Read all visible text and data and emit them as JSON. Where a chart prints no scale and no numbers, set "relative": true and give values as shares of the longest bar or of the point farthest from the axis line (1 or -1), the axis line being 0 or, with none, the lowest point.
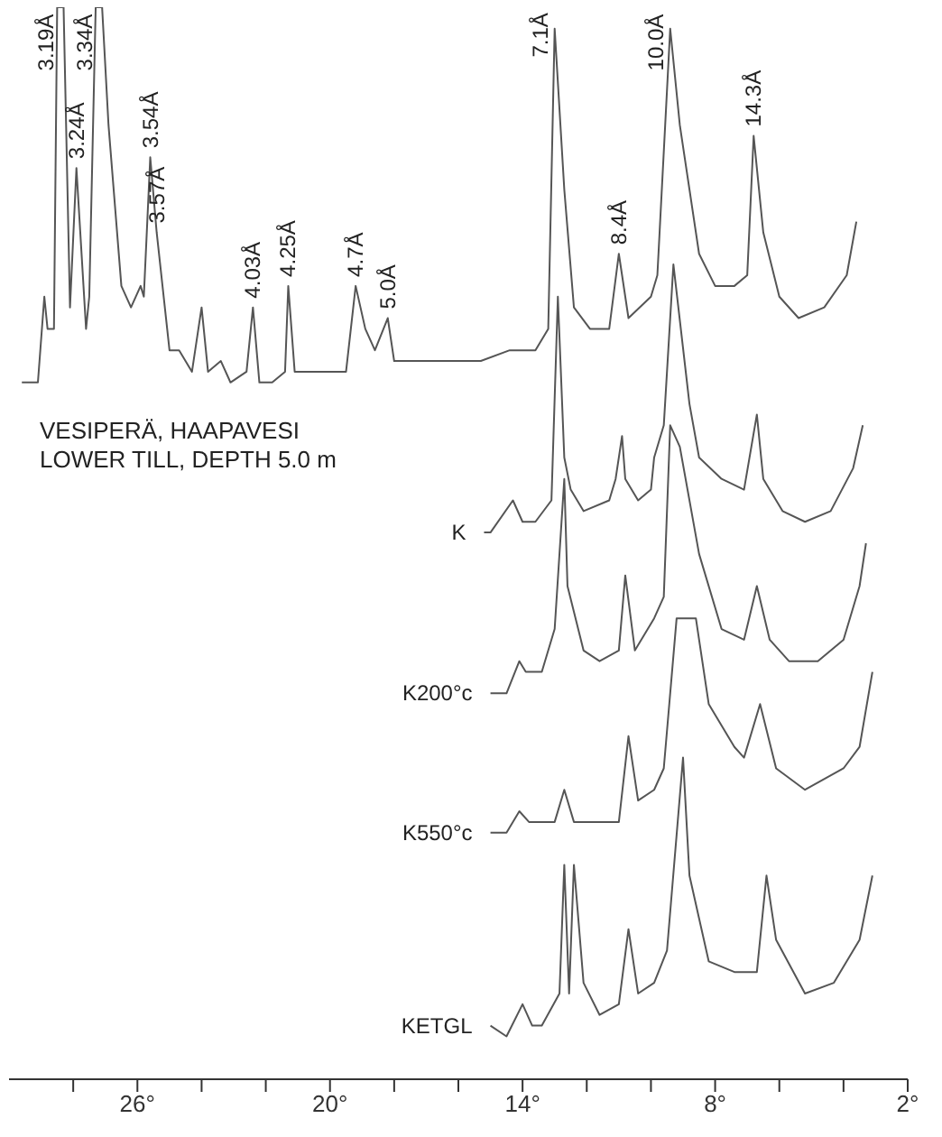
{
  "chart_data": {
    "type": "line",
    "relative": true,
    "xlim": [
      30,
      2
    ],
    "xticks": [
      {
        "value": 28,
        "label": null
      },
      {
        "value": 26,
        "label": "26°"
      },
      {
        "value": 24,
        "label": null
      },
      {
        "value": 22,
        "label": null
      },
      {
        "value": 20,
        "label": "20°"
      },
      {
        "value": 18,
        "label": null
      },
      {
        "value": 16,
        "label": null
      },
      {
        "value": 14,
        "label": "14°"
      },
      {
        "value": 12,
        "label": null
      },
      {
        "value": 10,
        "label": null
      },
      {
        "value": 8,
        "label": "8°"
      },
      {
        "value": 6,
        "label": null
      },
      {
        "value": 4,
        "label": null
      },
      {
        "value": 2,
        "label": "2°"
      }
    ],
    "annotations": [
      "VESIPERÄ, HAAPAVESI",
      "LOWER TILL, DEPTH 5.0 m",
      {
        "text": "3.19Å",
        "x": 28.4,
        "y": 1
      },
      {
        "text": "3.24Å",
        "x": 27.9,
        "y": 0.85
      },
      {
        "text": "3.34Å",
        "x": 27.2,
        "y": 1
      },
      {
        "text": "3.54Å",
        "x": 25.6,
        "y": 0.86
      },
      {
        "text": "3.57Å",
        "x": 25.4,
        "y": 0.79
      },
      {
        "text": "4.03Å",
        "x": 22.4,
        "y": 0.72
      },
      {
        "text": "4.25Å",
        "x": 21.3,
        "y": 0.74
      },
      {
        "text": "4.7Å",
        "x": 19.2,
        "y": 0.74
      },
      {
        "text": "5.0Å",
        "x": 18.2,
        "y": 0.71
      },
      {
        "text": "7.1Å",
        "x": 13.0,
        "y": 0.98
      },
      {
        "text": "8.4Å",
        "x": 11.0,
        "y": 0.77
      },
      {
        "text": "10.0Å",
        "x": 9.4,
        "y": 0.98
      },
      {
        "text": "14.3Å",
        "x": 6.8,
        "y": 0.88
      }
    ],
    "series": [
      {
        "color": "#555555",
        "x": [
          29.6,
          29.4,
          29.1,
          28.9,
          28.8,
          28.6,
          28.5,
          28.3,
          28.1,
          27.9,
          27.6,
          27.5,
          27.3,
          27.1,
          26.9,
          26.5,
          26.2,
          25.9,
          25.8,
          25.6,
          25.4,
          25.0,
          24.7,
          24.3,
          24.0,
          23.8,
          23.4,
          23.1,
          22.6,
          22.4,
          22.2,
          21.8,
          21.4,
          21.3,
          21.1,
          20.6,
          20.0,
          19.5,
          19.2,
          18.9,
          18.6,
          18.2,
          18.0,
          17.2,
          16.1,
          15.3,
          14.4,
          13.6,
          13.2,
          13.0,
          12.7,
          12.4,
          11.9,
          11.3,
          11.0,
          10.7,
          10.0,
          9.8,
          9.4,
          9.1,
          8.5,
          8.0,
          7.4,
          7.0,
          6.8,
          6.5,
          6.0,
          5.4,
          4.6,
          3.9,
          3.6
        ],
        "values": [
          0.65,
          0.65,
          0.65,
          0.73,
          0.7,
          0.7,
          1,
          1,
          0.72,
          0.85,
          0.7,
          0.73,
          1,
          1,
          0.89,
          0.74,
          0.72,
          0.74,
          0.73,
          0.86,
          0.79,
          0.68,
          0.68,
          0.66,
          0.72,
          0.66,
          0.67,
          0.65,
          0.66,
          0.72,
          0.65,
          0.65,
          0.66,
          0.74,
          0.66,
          0.66,
          0.66,
          0.66,
          0.74,
          0.7,
          0.68,
          0.71,
          0.67,
          0.67,
          0.67,
          0.67,
          0.68,
          0.68,
          0.7,
          0.98,
          0.83,
          0.72,
          0.7,
          0.7,
          0.77,
          0.71,
          0.73,
          0.75,
          0.98,
          0.89,
          0.77,
          0.74,
          0.74,
          0.75,
          0.88,
          0.79,
          0.73,
          0.71,
          0.72,
          0.75,
          0.8
        ]
      },
      {
        "name": "K",
        "color": "#555555",
        "x": [
          15.2,
          15.0,
          14.3,
          14.0,
          13.6,
          13.1,
          12.9,
          12.7,
          12.5,
          12.1,
          11.3,
          11.1,
          10.9,
          10.8,
          10.4,
          10.0,
          9.9,
          9.6,
          9.3,
          8.8,
          8.5,
          7.8,
          7.1,
          6.7,
          6.5,
          5.9,
          5.2,
          4.4,
          3.7,
          3.4
        ],
        "values": [
          0.51,
          0.51,
          0.54,
          0.52,
          0.52,
          0.54,
          0.73,
          0.58,
          0.55,
          0.53,
          0.54,
          0.56,
          0.6,
          0.56,
          0.54,
          0.55,
          0.58,
          0.61,
          0.76,
          0.63,
          0.58,
          0.56,
          0.55,
          0.62,
          0.56,
          0.53,
          0.52,
          0.53,
          0.57,
          0.61
        ]
      },
      {
        "name": "K200°c",
        "color": "#555555",
        "x": [
          15.0,
          14.5,
          14.1,
          13.9,
          13.4,
          13.0,
          12.7,
          12.6,
          12.1,
          11.6,
          11.0,
          10.8,
          10.5,
          9.9,
          9.6,
          9.4,
          9.1,
          8.5,
          7.8,
          7.1,
          6.7,
          6.3,
          5.7,
          4.8,
          4.0,
          3.5,
          3.3
        ],
        "values": [
          0.36,
          0.36,
          0.39,
          0.38,
          0.38,
          0.42,
          0.56,
          0.46,
          0.4,
          0.39,
          0.4,
          0.47,
          0.4,
          0.43,
          0.45,
          0.61,
          0.59,
          0.49,
          0.42,
          0.41,
          0.46,
          0.41,
          0.39,
          0.39,
          0.41,
          0.46,
          0.5
        ]
      },
      {
        "name": "K550°c",
        "color": "#555555",
        "x": [
          15.0,
          14.5,
          14.1,
          13.8,
          13.0,
          12.7,
          12.4,
          11.6,
          11.0,
          10.7,
          10.4,
          9.9,
          9.6,
          9.2,
          8.6,
          8.2,
          7.4,
          7.1,
          6.6,
          6.1,
          5.2,
          4.0,
          3.5,
          3.1
        ],
        "values": [
          0.23,
          0.23,
          0.25,
          0.24,
          0.24,
          0.27,
          0.24,
          0.24,
          0.24,
          0.32,
          0.26,
          0.27,
          0.29,
          0.43,
          0.43,
          0.35,
          0.31,
          0.3,
          0.35,
          0.29,
          0.27,
          0.29,
          0.31,
          0.38
        ]
      },
      {
        "name": "KETGL",
        "color": "#555555",
        "x": [
          15.0,
          14.5,
          14.0,
          13.7,
          13.4,
          12.85,
          12.7,
          12.55,
          12.4,
          12.1,
          11.6,
          11.0,
          10.7,
          10.4,
          9.9,
          9.5,
          9.0,
          8.8,
          8.2,
          7.4,
          6.7,
          6.4,
          6.1,
          5.2,
          4.3,
          3.5,
          3.1
        ],
        "values": [
          0.05,
          0.04,
          0.07,
          0.05,
          0.05,
          0.08,
          0.2,
          0.08,
          0.2,
          0.09,
          0.06,
          0.07,
          0.14,
          0.08,
          0.09,
          0.12,
          0.3,
          0.19,
          0.11,
          0.1,
          0.1,
          0.19,
          0.13,
          0.08,
          0.09,
          0.13,
          0.19
        ]
      }
    ]
  }
}
